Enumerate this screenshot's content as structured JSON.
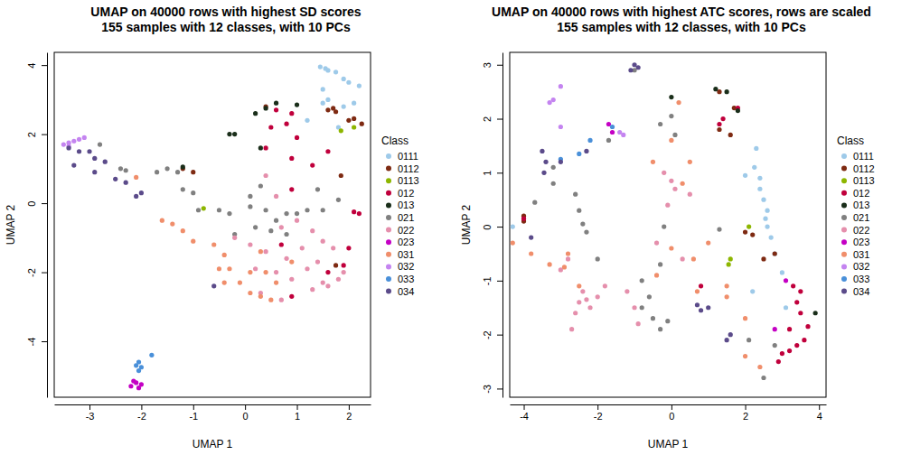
{
  "chart_data": [
    {
      "type": "scatter",
      "title": "UMAP on 40000 rows with highest SD scores\n155 samples with 12 classes, with 10 PCs",
      "x_label": "UMAP 1",
      "y_label": "UMAP 2",
      "legend_title": "Class",
      "legend": "right",
      "marker": "circle",
      "xlim": [
        -3.68,
        2.42
      ],
      "ylim": [
        -5.62,
        4.37
      ],
      "xticks": [
        -3,
        -2,
        -1,
        0,
        1,
        2
      ],
      "yticks": [
        -4,
        -2,
        0,
        2,
        4
      ],
      "series": [
        {
          "name": "0111",
          "color": "#9ECAE9",
          "x": [
            1.45,
            1.55,
            1.6,
            1.75,
            1.9,
            2.0,
            2.2,
            1.5,
            1.6,
            1.5,
            1.9,
            1.2,
            1.8,
            2.1
          ],
          "values": [
            3.95,
            3.9,
            3.85,
            3.8,
            3.6,
            3.5,
            3.4,
            3.3,
            3.0,
            2.9,
            2.8,
            2.4,
            2.2,
            2.9
          ]
        },
        {
          "name": "0112",
          "color": "#7E2A12",
          "x": [
            1.7,
            1.75,
            2.0,
            2.1,
            2.25,
            1.6,
            1.85,
            -1.2,
            -1.0,
            0.4,
            1.75
          ],
          "values": [
            2.75,
            2.65,
            2.4,
            2.45,
            2.3,
            2.7,
            0.8,
            1.0,
            0.9,
            2.8,
            -1.8
          ]
        },
        {
          "name": "0113",
          "color": "#8DB600",
          "x": [
            1.85,
            2.1,
            -0.8
          ],
          "values": [
            2.1,
            2.2,
            -0.15
          ]
        },
        {
          "name": "012",
          "color": "#C0003C",
          "x": [
            0.6,
            0.9,
            0.8,
            0.5,
            1.0,
            0.4,
            0.9,
            0.9,
            1.3,
            0.7,
            2.2,
            2.1,
            1.9,
            2.0,
            1.6,
            0.9,
            1.6
          ],
          "values": [
            2.7,
            2.6,
            2.3,
            2.2,
            1.9,
            1.6,
            1.3,
            0.4,
            1.1,
            -1.2,
            -0.3,
            -0.25,
            -1.8,
            -1.3,
            -2.0,
            -2.7,
            1.5
          ]
        },
        {
          "name": "013",
          "color": "#1A2E1A",
          "x": [
            -0.3,
            -0.2,
            0.2,
            0.4,
            0.6,
            1.0,
            0.3,
            -1.2
          ],
          "values": [
            2.0,
            2.0,
            2.6,
            2.75,
            2.9,
            2.85,
            1.6,
            1.05
          ]
        },
        {
          "name": "021",
          "color": "#808080",
          "x": [
            -1.7,
            -1.5,
            -1.3,
            -1.2,
            -1.0,
            -0.9,
            -0.5,
            -0.3,
            0.1,
            0.1,
            0.3,
            0.4,
            0.6,
            0.8,
            1.0,
            1.2,
            1.5,
            1.8,
            0.5,
            0.8,
            0.2,
            -0.2,
            1.4,
            -2.8,
            -2.4,
            -2.3
          ],
          "values": [
            0.9,
            1.0,
            0.9,
            0.4,
            0.3,
            -0.2,
            -0.2,
            -0.3,
            -0.1,
            0.2,
            0.5,
            -0.2,
            -0.5,
            -0.3,
            -0.3,
            -0.2,
            -0.2,
            0.1,
            -0.8,
            -0.9,
            -0.7,
            -0.9,
            0.4,
            1.7,
            1.0,
            0.95
          ]
        },
        {
          "name": "022",
          "color": "#E58FAC",
          "x": [
            0.4,
            0.6,
            0.7,
            1.0,
            1.3,
            1.5,
            1.7,
            1.1,
            1.4,
            1.2,
            1.5,
            1.6,
            1.8,
            1.3,
            0.9,
            0.6,
            0.7,
            0.3,
            0.2,
            0.8,
            1.9,
            0.4,
            0.1,
            -0.2
          ],
          "values": [
            0.8,
            0.2,
            -0.7,
            -0.5,
            -0.8,
            -1.1,
            -1.3,
            -1.3,
            -1.7,
            -1.9,
            -2.3,
            -2.4,
            -2.2,
            -2.5,
            -2.2,
            -2.0,
            -2.8,
            -2.6,
            -1.9,
            -1.6,
            -2.0,
            -1.4,
            -1.2,
            -1.0
          ]
        },
        {
          "name": "023",
          "color": "#C400C4",
          "x": [
            -2.2,
            -2.1,
            -2.0,
            -2.05,
            -2.15
          ],
          "values": [
            -5.3,
            -5.2,
            -5.25,
            -5.35,
            -5.15
          ]
        },
        {
          "name": "031",
          "color": "#F08E6B",
          "x": [
            -1.6,
            -1.4,
            -1.2,
            -1.0,
            -0.6,
            -0.4,
            -0.3,
            -0.1,
            0.1,
            0.3,
            0.5,
            0.1,
            -0.5,
            -0.4,
            0.3,
            -2.1,
            0.9,
            0.6,
            0.4
          ],
          "values": [
            -0.5,
            -0.6,
            -0.8,
            -1.1,
            -1.2,
            -1.5,
            -1.9,
            -2.3,
            -2.6,
            -2.7,
            -2.8,
            -2.0,
            -1.9,
            -2.3,
            -1.4,
            0.75,
            -1.7,
            -2.3,
            -2.0
          ]
        },
        {
          "name": "032",
          "color": "#C484F0",
          "x": [
            -3.5,
            -3.4,
            -3.3,
            -3.2,
            -3.1,
            -3.4
          ],
          "values": [
            1.7,
            1.75,
            1.8,
            1.85,
            1.9,
            1.65
          ]
        },
        {
          "name": "033",
          "color": "#4A90D9",
          "x": [
            -2.1,
            -2.05,
            -2.0,
            -1.8,
            -2.05
          ],
          "values": [
            -4.7,
            -4.6,
            -4.75,
            -4.4,
            -4.85
          ]
        },
        {
          "name": "034",
          "color": "#5B4B8A",
          "x": [
            -3.4,
            -3.3,
            -3.2,
            -3.0,
            -2.9,
            -2.9,
            -2.7,
            -2.5,
            -2.3,
            -2.0,
            -2.1,
            -0.6
          ],
          "values": [
            1.6,
            1.1,
            1.5,
            1.5,
            1.3,
            0.9,
            1.2,
            0.7,
            0.6,
            0.3,
            0.2,
            -2.4
          ]
        }
      ]
    },
    {
      "type": "scatter",
      "title": "UMAP on 40000 rows with highest ATC scores, rows are scaled\n155 samples with 12 classes, with 10 PCs",
      "x_label": "UMAP 1",
      "y_label": "UMAP 2",
      "legend_title": "Class",
      "legend": "right",
      "marker": "circle",
      "xlim": [
        -4.38,
        4.19
      ],
      "ylim": [
        -3.16,
        3.23
      ],
      "xticks": [
        -4,
        -2,
        0,
        2,
        4
      ],
      "yticks": [
        -3,
        -2,
        -1,
        0,
        1,
        2,
        3
      ],
      "series": [
        {
          "name": "0111",
          "color": "#9ECAE9",
          "x": [
            2.3,
            2.25,
            2.4,
            2.4,
            2.5,
            2.6,
            2.55,
            2.6,
            2.7,
            2.8,
            3.0,
            2.2,
            3.1,
            2.0,
            -4.3
          ],
          "values": [
            1.45,
            1.1,
            0.9,
            0.7,
            0.5,
            0.3,
            0.15,
            0.0,
            -0.2,
            -0.5,
            -0.85,
            -1.2,
            -1.5,
            0.95,
            0.0
          ]
        },
        {
          "name": "0112",
          "color": "#7E2A12",
          "x": [
            1.3,
            1.7,
            1.6,
            1.3,
            2.0,
            2.2,
            2.5,
            2.8,
            -4.0,
            -4.0
          ],
          "values": [
            2.5,
            2.2,
            1.7,
            1.8,
            -0.1,
            -0.15,
            -0.6,
            -0.5,
            0.2,
            0.1
          ]
        },
        {
          "name": "0113",
          "color": "#8DB600",
          "x": [
            2.1,
            1.6,
            1.55
          ],
          "values": [
            0.0,
            -0.6,
            -0.7
          ]
        },
        {
          "name": "012",
          "color": "#C0003C",
          "x": [
            1.3,
            1.8,
            1.4,
            3.3,
            3.5,
            3.4,
            3.5,
            3.7,
            3.6,
            3.4,
            3.2,
            3.0,
            2.9,
            3.2,
            0.8,
            -4.0
          ],
          "values": [
            1.9,
            2.2,
            2.0,
            -1.1,
            -1.2,
            -1.4,
            -1.6,
            -1.85,
            -2.1,
            -2.2,
            -2.3,
            -2.35,
            -2.5,
            -1.9,
            -1.1,
            0.15
          ]
        },
        {
          "name": "013",
          "color": "#1A2E1A",
          "x": [
            1.2,
            1.5,
            1.8,
            3.9,
            0.0
          ],
          "values": [
            2.55,
            2.5,
            2.15,
            -1.6,
            2.4
          ]
        },
        {
          "name": "021",
          "color": "#808080",
          "x": [
            -2.5,
            -2.4,
            -2.3,
            -2.6,
            -3.7,
            -3.2,
            -3.2,
            -1.7,
            -0.3,
            0.0,
            0.1,
            -0.2,
            -0.3,
            -0.8,
            -0.5,
            -0.3,
            -0.1,
            2.1,
            2.5,
            2.8,
            1.3,
            -0.8,
            -0.6,
            -2.0,
            -1.0
          ],
          "values": [
            0.3,
            0.05,
            -0.1,
            0.6,
            0.45,
            0.8,
            1.1,
            1.6,
            1.9,
            2.05,
            1.7,
            0.0,
            -0.7,
            -1.5,
            -1.7,
            -1.9,
            -1.75,
            -2.1,
            -2.8,
            -2.2,
            -0.05,
            -1.0,
            -1.3,
            -0.6,
            2.9
          ]
        },
        {
          "name": "022",
          "color": "#E58FAC",
          "x": [
            -2.4,
            -2.3,
            -2.5,
            -2.2,
            -2.0,
            -2.6,
            -1.8,
            -1.2,
            -1.0,
            -0.9,
            -3.0,
            -2.8,
            -0.2,
            0.0,
            -0.1,
            0.5,
            0.1,
            -0.4,
            0.3,
            -2.7
          ],
          "values": [
            -1.2,
            -1.35,
            -1.4,
            -1.5,
            -1.3,
            -1.6,
            -1.1,
            -1.2,
            -1.5,
            -1.8,
            -0.8,
            -0.6,
            1.0,
            0.85,
            0.4,
            0.6,
            0.7,
            -0.3,
            -0.6,
            -1.9
          ]
        },
        {
          "name": "023",
          "color": "#C400C4",
          "x": [
            -1.7,
            -1.6,
            2.8,
            3.1
          ],
          "values": [
            1.9,
            1.75,
            -1.9,
            -1.0
          ]
        },
        {
          "name": "031",
          "color": "#F08E6B",
          "x": [
            -4.3,
            -3.8,
            -3.3,
            -2.9,
            -2.8,
            -2.5,
            0.2,
            0.0,
            -0.5,
            0.5,
            0.3,
            0.6,
            0.7,
            1.5,
            2.0,
            2.0,
            2.4,
            1.5,
            0.0,
            -0.4,
            1.0
          ],
          "values": [
            -0.3,
            -0.5,
            -0.7,
            -0.75,
            -0.5,
            -1.1,
            2.3,
            1.6,
            1.2,
            1.2,
            0.8,
            -0.6,
            -1.2,
            -1.3,
            -1.7,
            -2.4,
            -2.6,
            -1.1,
            -0.4,
            -0.9,
            -0.3
          ]
        },
        {
          "name": "032",
          "color": "#C484F0",
          "x": [
            -3.3,
            -3.2,
            -3.0,
            -1.4,
            -1.3,
            -3.0
          ],
          "values": [
            2.3,
            2.35,
            2.6,
            1.75,
            1.7,
            1.85
          ]
        },
        {
          "name": "033",
          "color": "#4A90D9",
          "x": [
            -2.5,
            -2.2,
            -3.0,
            -1.6
          ],
          "values": [
            1.35,
            1.6,
            1.25,
            1.85
          ]
        },
        {
          "name": "034",
          "color": "#5B4B8A",
          "x": [
            -3.4,
            -3.5,
            -3.45,
            -3.0,
            -3.8,
            -2.3,
            -1.0,
            -0.9,
            -1.1,
            0.7,
            0.8,
            1.6,
            1.5,
            1.0
          ],
          "values": [
            1.2,
            1.4,
            1.0,
            1.2,
            -0.2,
            1.4,
            3.0,
            2.95,
            2.9,
            -1.45,
            -1.55,
            -2.0,
            -2.1,
            -1.5
          ]
        }
      ]
    }
  ]
}
